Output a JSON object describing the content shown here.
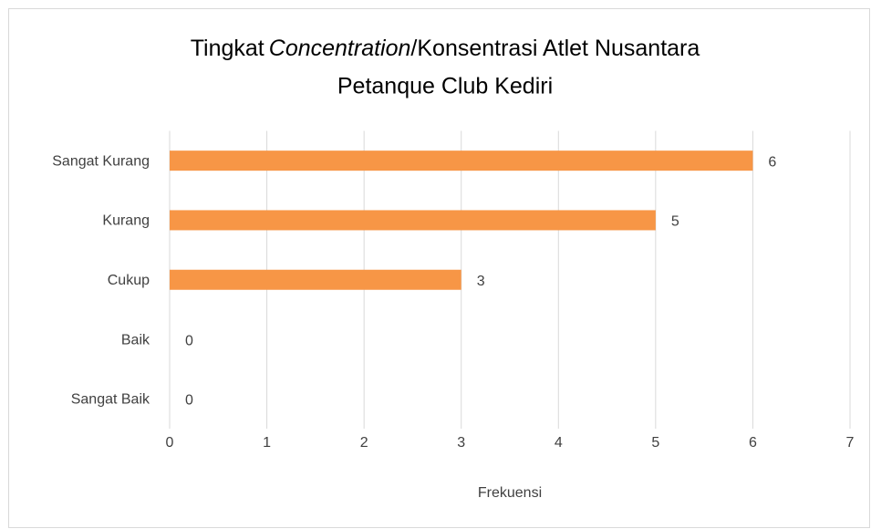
{
  "chart_data": {
    "type": "barh",
    "title": [
      "Tingkat",
      "Concentration",
      "/Konsentrasi Atlet Nusantara",
      "Petanque Club Kediri"
    ],
    "categories": [
      "Sangat Kurang",
      "Kurang",
      "Cukup",
      "Baik",
      "Sangat Baik"
    ],
    "values": [
      6,
      5,
      3,
      0,
      0
    ],
    "color": "#f79646",
    "xlabel": "Frekuensi",
    "xlim": [
      0,
      7
    ],
    "xticks": [
      0,
      1,
      2,
      3,
      4,
      5,
      6,
      7
    ],
    "grid": true,
    "data_labels": true
  }
}
